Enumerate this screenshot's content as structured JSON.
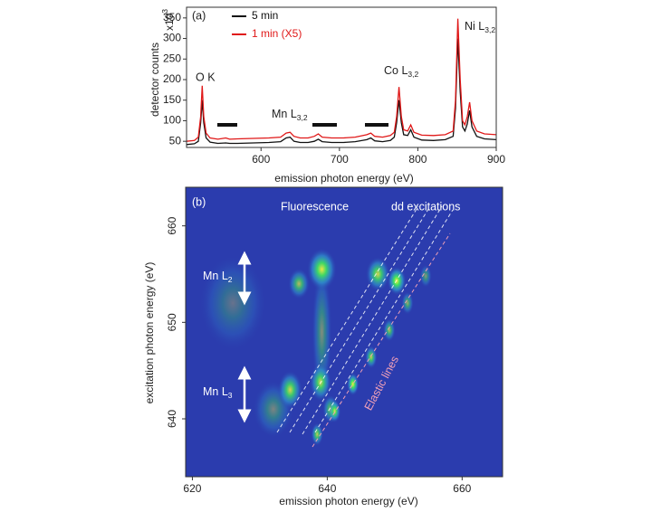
{
  "chart_data": [
    {
      "type": "line",
      "panel_label": "(a)",
      "x_label": "emission photon energy (eV)",
      "y_label": "detector counts",
      "y_unit": {
        "text": "x10",
        "sup": "3"
      },
      "legend": "top-left",
      "xlim": [
        505,
        900
      ],
      "xticks": [
        600,
        700,
        800,
        900
      ],
      "ylim": [
        35,
        376
      ],
      "yticks": [
        50,
        100,
        150,
        200,
        250,
        300,
        350
      ],
      "x": [
        505,
        515,
        520,
        523,
        525,
        527,
        530,
        535,
        545,
        555,
        560,
        570,
        590,
        610,
        625,
        632,
        637,
        642,
        650,
        660,
        668,
        673,
        678,
        690,
        705,
        720,
        735,
        740,
        745,
        755,
        765,
        770,
        773,
        776,
        779,
        782,
        787,
        791,
        795,
        805,
        820,
        835,
        845,
        848,
        851,
        854,
        857,
        860,
        863,
        866,
        869,
        875,
        885,
        900
      ],
      "series": [
        {
          "name": "5 min",
          "color": "#111111",
          "values": [
            42,
            44,
            50,
            95,
            150,
            95,
            58,
            48,
            45,
            46,
            45,
            45,
            46,
            47,
            49,
            58,
            60,
            50,
            47,
            47,
            50,
            55,
            49,
            47,
            47,
            49,
            54,
            58,
            51,
            49,
            52,
            60,
            95,
            150,
            95,
            66,
            64,
            78,
            60,
            53,
            52,
            54,
            62,
            130,
            300,
            170,
            85,
            75,
            92,
            125,
            85,
            62,
            56,
            54
          ]
        },
        {
          "name": "1 min (X5)",
          "color": "#e01818",
          "values": [
            50,
            52,
            60,
            110,
            185,
            110,
            70,
            58,
            55,
            58,
            55,
            56,
            57,
            58,
            60,
            70,
            72,
            62,
            58,
            58,
            62,
            68,
            60,
            58,
            58,
            60,
            66,
            70,
            62,
            60,
            64,
            72,
            110,
            182,
            110,
            78,
            75,
            90,
            72,
            65,
            64,
            66,
            75,
            150,
            348,
            200,
            100,
            90,
            110,
            145,
            100,
            75,
            68,
            66
          ]
        }
      ],
      "annotations": [
        {
          "text": "O K"
        },
        {
          "text": "Mn L",
          "sub": "3,2"
        },
        {
          "text": "Co L",
          "sub": "3,2"
        },
        {
          "text": "Ni L",
          "sub": "3,2"
        }
      ]
    },
    {
      "type": "map",
      "panel_label": "(b)",
      "x_label": "emission photon energy (eV)",
      "y_label": "excitation photon energy (eV)",
      "xlim": [
        619,
        666
      ],
      "xticks": [
        620,
        640,
        660
      ],
      "ylim": [
        634,
        664
      ],
      "yticks": [
        640,
        650,
        660
      ],
      "background": "#2b3cae",
      "peaks": [
        {
          "x": 626,
          "y": 652,
          "wx": 5,
          "wy": 5,
          "intensity": 0.3
        },
        {
          "x": 632,
          "y": 641,
          "wx": 3,
          "wy": 3,
          "intensity": 0.4
        },
        {
          "x": 639.2,
          "y": 649,
          "wx": 1.5,
          "wy": 7,
          "intensity": 0.45
        },
        {
          "x": 639.2,
          "y": 655.5,
          "wx": 2.2,
          "wy": 2.2,
          "intensity": 0.95
        },
        {
          "x": 635.8,
          "y": 654,
          "wx": 1.6,
          "wy": 1.6,
          "intensity": 0.7
        },
        {
          "x": 647.5,
          "y": 655,
          "wx": 1.8,
          "wy": 1.8,
          "intensity": 0.85
        },
        {
          "x": 650.3,
          "y": 654.3,
          "wx": 1.4,
          "wy": 1.5,
          "intensity": 1
        },
        {
          "x": 634.5,
          "y": 643,
          "wx": 1.8,
          "wy": 2,
          "intensity": 0.85
        },
        {
          "x": 639,
          "y": 643.8,
          "wx": 1.6,
          "wy": 2,
          "intensity": 0.85
        },
        {
          "x": 640.5,
          "y": 641,
          "wx": 1.2,
          "wy": 1.5,
          "intensity": 0.7
        },
        {
          "x": 638.5,
          "y": 638.4,
          "wx": 0.9,
          "wy": 1.2,
          "intensity": 0.8
        },
        {
          "x": 641.1,
          "y": 640.8,
          "wx": 0.9,
          "wy": 1.2,
          "intensity": 0.9
        },
        {
          "x": 643.8,
          "y": 643.6,
          "wx": 0.9,
          "wy": 1.2,
          "intensity": 1
        },
        {
          "x": 646.5,
          "y": 646.4,
          "wx": 0.9,
          "wy": 1.2,
          "intensity": 0.8
        },
        {
          "x": 649.2,
          "y": 649.2,
          "wx": 0.9,
          "wy": 1.2,
          "intensity": 0.7
        },
        {
          "x": 651.9,
          "y": 652,
          "wx": 0.9,
          "wy": 1.2,
          "intensity": 0.6
        },
        {
          "x": 654.6,
          "y": 654.8,
          "wx": 0.9,
          "wy": 1.2,
          "intensity": 0.5
        }
      ],
      "annotations": [
        {
          "text": "Fluorescence"
        },
        {
          "text": "dd excitations"
        },
        {
          "text": "Mn L",
          "sub": "2"
        },
        {
          "text": "Mn L",
          "sub": "3"
        },
        {
          "text": "Elastic lines"
        }
      ]
    }
  ]
}
